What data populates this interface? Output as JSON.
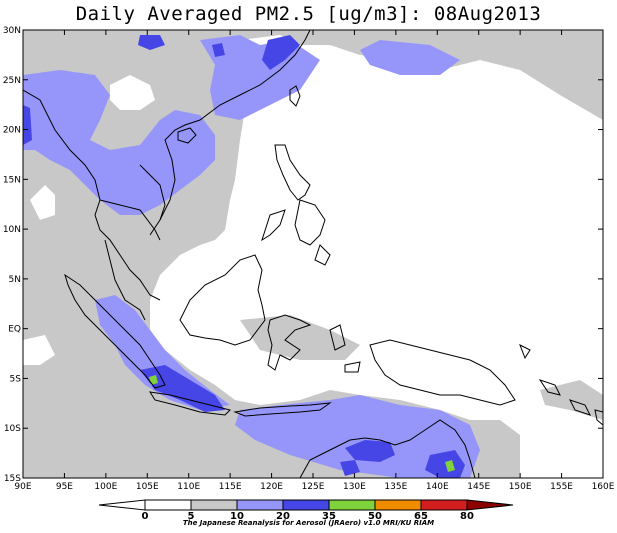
{
  "title": "Daily Averaged PM2.5 [ug/m3]: 08Aug2013",
  "credit": "The Japanese Reanalysis for Aerosol (JRAero) v1.0 MRI/KU RIAM",
  "colors": {
    "c0_5": "#ffffff",
    "c5_10": "#ffffff",
    "c10_20": "#c8c8c8",
    "c20_35": "#9696fa",
    "c35_50": "#4646e6",
    "c50_65": "#80d23c",
    "c65_80": "#f08c00",
    "c80": "#d21e1e",
    "c_gt80": "#8c0000",
    "coast": "#000000"
  },
  "axes": {
    "lon_labels": [
      "90E",
      "95E",
      "100E",
      "105E",
      "110E",
      "115E",
      "120E",
      "125E",
      "130E",
      "135E",
      "140E",
      "145E",
      "150E",
      "155E",
      "160E"
    ],
    "lat_labels": [
      "30N",
      "25N",
      "20N",
      "15N",
      "10N",
      "5N",
      "EQ",
      "5S",
      "10S",
      "15S"
    ]
  },
  "colorbar": {
    "labels": [
      "0",
      "5",
      "10",
      "20",
      "35",
      "50",
      "65",
      "80"
    ]
  },
  "chart_data": {
    "type": "heatmap",
    "title": "Daily Averaged PM2.5 [ug/m3]: 08Aug2013",
    "lon_range": [
      90,
      160
    ],
    "lat_range": [
      -15,
      30
    ],
    "levels": [
      0,
      5,
      10,
      20,
      35,
      50,
      65,
      80
    ],
    "regions_description": [
      {
        "level": "10-20",
        "area": "widespread over SE Asia mainland, South China Sea, Sumatra, Java Sea, Banda Sea, northern Australia"
      },
      {
        "level": "20-35",
        "area": "Indochina, southern China, Sumatra, Java, Timor/Arafura Sea"
      },
      {
        "level": "35-50",
        "area": "southern China near 118E-122E 25N-30N, southern Sumatra near 105E 5S, near 139E-142E 12S-15S"
      },
      {
        "level": "50-65",
        "area": "small spots near 105.5E 5S and 141E 14S"
      }
    ]
  }
}
